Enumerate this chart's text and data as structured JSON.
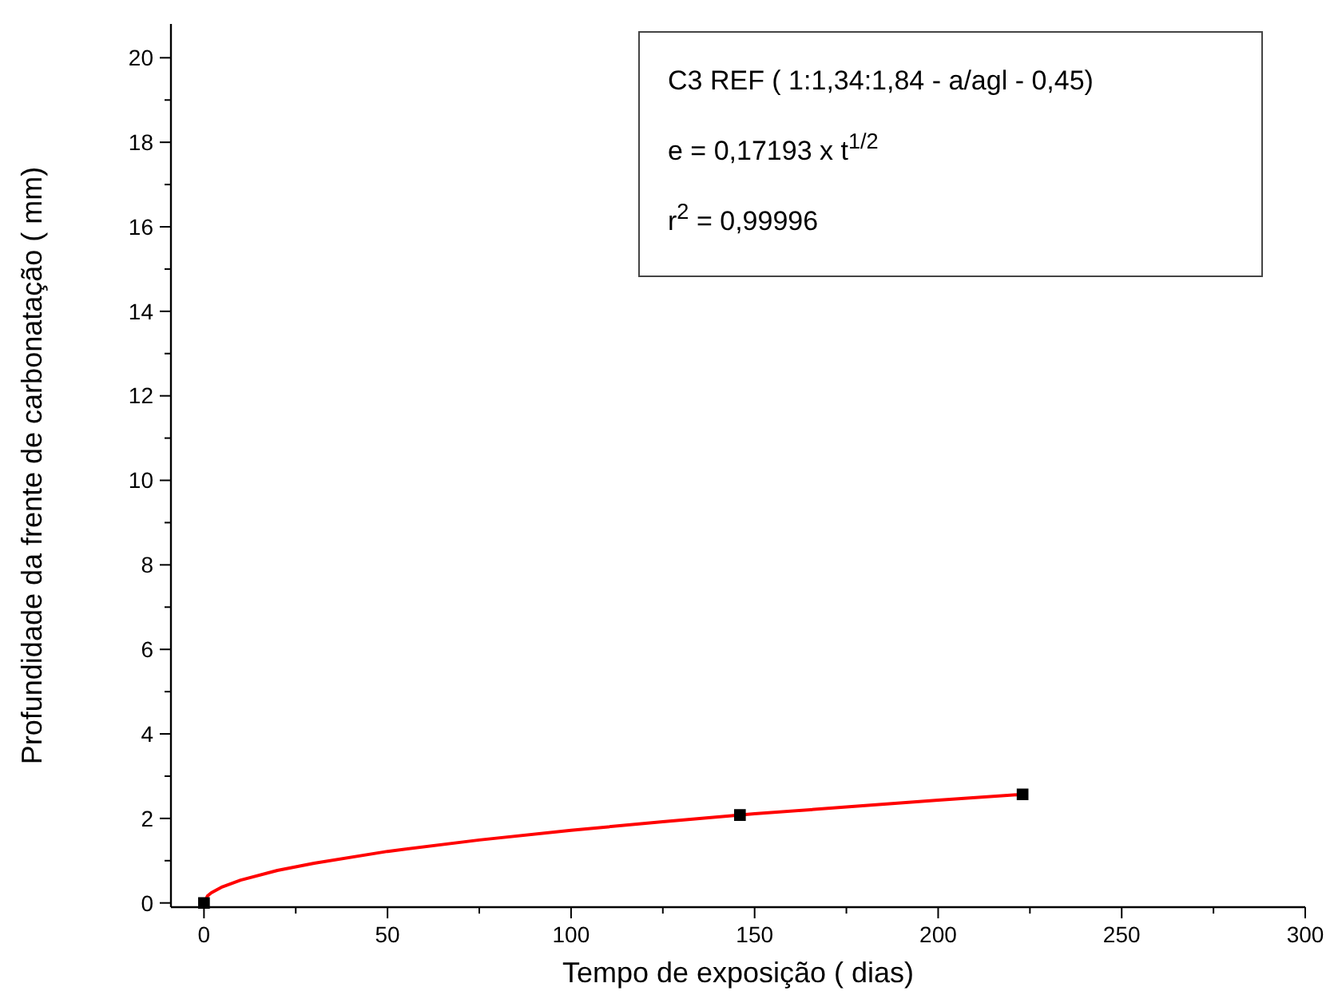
{
  "chart_data": {
    "type": "scatter",
    "xlabel": "Tempo de exposição  ( dias)",
    "ylabel": "Profundidade da frente de carbonatação ( mm)",
    "xlim": [
      -9,
      300
    ],
    "ylim": [
      -0.1,
      20.8
    ],
    "xticks": [
      0,
      {
        "value": 25,
        "label": null
      },
      50,
      {
        "value": 75,
        "label": null
      },
      100,
      {
        "value": 125,
        "label": null
      },
      150,
      {
        "value": 175,
        "label": null
      },
      200,
      {
        "value": 225,
        "label": null
      },
      250,
      {
        "value": 275,
        "label": null
      },
      300
    ],
    "yticks": [
      0,
      {
        "value": 1,
        "label": null
      },
      2,
      {
        "value": 3,
        "label": null
      },
      4,
      {
        "value": 5,
        "label": null
      },
      6,
      {
        "value": 7,
        "label": null
      },
      8,
      {
        "value": 9,
        "label": null
      },
      10,
      {
        "value": 11,
        "label": null
      },
      12,
      {
        "value": 13,
        "label": null
      },
      14,
      {
        "value": 15,
        "label": null
      },
      16,
      {
        "value": 17,
        "label": null
      },
      18,
      {
        "value": 19,
        "label": null
      },
      20
    ],
    "grid": false,
    "annotations": [
      "C3 REF  ( 1:1,34:1,84 - a/agl - 0,45)",
      "e = 0,17193 x t$^{1/2}$",
      "r$^{2}$ = 0,99996"
    ],
    "series": [
      {
        "type": "line",
        "color": "#ff0000",
        "marker": "none",
        "line_style": "solid",
        "x": [
          0,
          1,
          2,
          5,
          10,
          20,
          30,
          50,
          75,
          100,
          125,
          150,
          175,
          200,
          223
        ],
        "values": [
          0,
          0.17,
          0.24,
          0.38,
          0.54,
          0.77,
          0.94,
          1.22,
          1.49,
          1.72,
          1.92,
          2.11,
          2.27,
          2.43,
          2.57
        ]
      },
      {
        "color": "#000000",
        "marker": "square",
        "x": [
          0,
          146,
          223
        ],
        "values": [
          0,
          2.08,
          2.57
        ]
      }
    ]
  }
}
